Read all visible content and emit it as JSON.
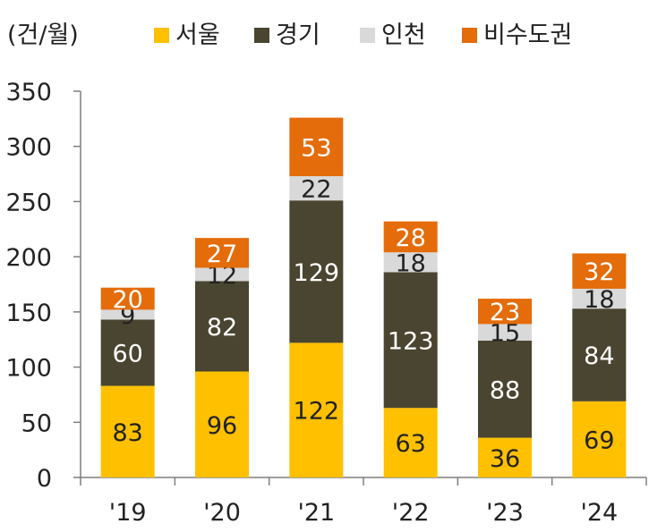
{
  "unit_label": "(건/월)",
  "chart_data": {
    "type": "bar",
    "stacked": true,
    "categories": [
      "'19",
      "'20",
      "'21",
      "'22",
      "'23",
      "'24"
    ],
    "series": [
      {
        "name": "서울",
        "values": [
          83,
          96,
          122,
          63,
          36,
          69
        ],
        "color": "#FFC000",
        "label_color": "#222222"
      },
      {
        "name": "경기",
        "values": [
          60,
          82,
          129,
          123,
          88,
          84
        ],
        "color": "#4A4530",
        "label_color": "#FFFFFF"
      },
      {
        "name": "인천",
        "values": [
          9,
          12,
          22,
          18,
          15,
          18
        ],
        "color": "#D9D9D9",
        "label_color": "#222222"
      },
      {
        "name": "비수도권",
        "values": [
          20,
          27,
          53,
          28,
          23,
          32
        ],
        "color": "#E46C0A",
        "label_color": "#FFFFFF"
      }
    ],
    "ylim": [
      0,
      350
    ],
    "yticks": [
      0,
      50,
      100,
      150,
      200,
      250,
      300,
      350
    ],
    "grid": false,
    "legend_position": "top"
  }
}
